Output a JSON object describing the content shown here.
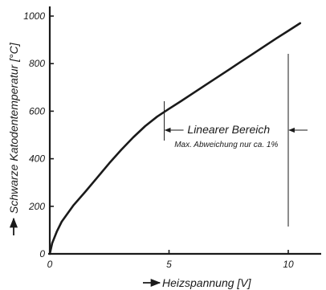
{
  "chart_data": {
    "type": "line",
    "xlabel": "Heizspannung [V]",
    "ylabel": "Schwarze Katodentemperatur [°C]",
    "xlim": [
      0,
      11
    ],
    "ylim": [
      0,
      1000
    ],
    "x_ticks": [
      0,
      5,
      10
    ],
    "x_tick_labels": [
      "0",
      "5",
      "10"
    ],
    "y_ticks": [
      0,
      200,
      400,
      600,
      800,
      1000
    ],
    "y_tick_labels": [
      "0",
      "200",
      "400",
      "600",
      "800",
      "1000"
    ],
    "grid": false,
    "legend": "none",
    "series": [
      {
        "x": [
          0,
          0.1,
          0.3,
          0.5,
          1,
          1.5,
          2,
          2.5,
          3,
          3.5,
          4,
          4.5,
          5,
          5.5,
          6,
          6.5,
          7,
          7.5,
          8,
          8.5,
          9,
          9.5,
          10,
          10.5
        ],
        "y": [
          0,
          45,
          95,
          135,
          205,
          262,
          322,
          382,
          438,
          490,
          537,
          577,
          610,
          642,
          675,
          708,
          741,
          774,
          807,
          840,
          873,
          906,
          938,
          970
        ]
      }
    ],
    "annotations": [
      {
        "text": "Linearer Bereich",
        "subtext": "Max. Abweichung nur ca. 1%",
        "x_start": 4.8,
        "x_end": 10
      }
    ]
  }
}
